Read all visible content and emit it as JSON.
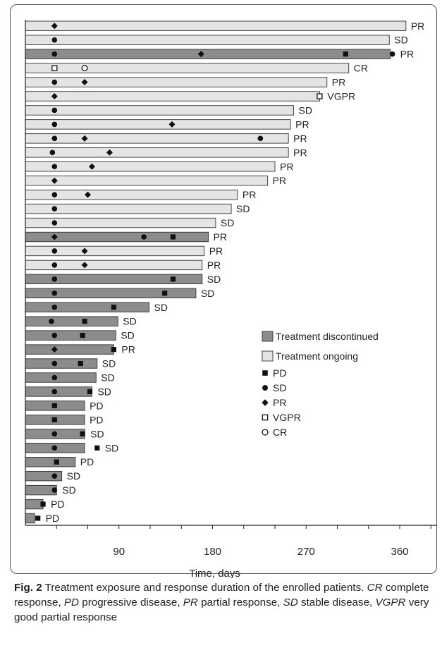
{
  "chart_data": {
    "type": "bar",
    "orientation": "horizontal",
    "title": "",
    "xlabel": "Time, days",
    "ylabel": "",
    "xlim": [
      0,
      390
    ],
    "x_ticks": [
      90,
      180,
      270,
      360
    ],
    "grid": false,
    "legend_position": "right",
    "colors": {
      "discontinued": "#8c8c8c",
      "ongoing": "#e4e4e4",
      "marker": "#111111"
    },
    "legend": {
      "discontinued": "Treatment discontinued",
      "ongoing": "Treatment ongoing",
      "PD": "PD",
      "SD": "SD",
      "PR": "PR",
      "VGPR": "VGPR",
      "CR": "CR"
    },
    "patients": [
      {
        "duration": 366,
        "status": "ongoing",
        "best_response": "PR",
        "events": [
          {
            "type": "PR",
            "day": 28
          }
        ]
      },
      {
        "duration": 350,
        "status": "ongoing",
        "best_response": "SD",
        "events": [
          {
            "type": "SD",
            "day": 28
          }
        ]
      },
      {
        "duration": 351,
        "status": "discontinued",
        "best_response": "PR",
        "events": [
          {
            "type": "SD",
            "day": 28
          },
          {
            "type": "PR",
            "day": 169
          },
          {
            "type": "PD",
            "day": 308
          },
          {
            "type": "SD",
            "day": 353
          }
        ]
      },
      {
        "duration": 311,
        "status": "ongoing",
        "best_response": "CR",
        "events": [
          {
            "type": "VGPR",
            "day": 28
          },
          {
            "type": "CR",
            "day": 57
          }
        ]
      },
      {
        "duration": 290,
        "status": "ongoing",
        "best_response": "PR",
        "events": [
          {
            "type": "SD",
            "day": 28
          },
          {
            "type": "PR",
            "day": 57
          }
        ]
      },
      {
        "duration": 283,
        "status": "ongoing",
        "best_response": "VGPR",
        "events": [
          {
            "type": "PR",
            "day": 28
          },
          {
            "type": "VGPR",
            "day": 283
          }
        ]
      },
      {
        "duration": 258,
        "status": "ongoing",
        "best_response": "SD",
        "events": [
          {
            "type": "SD",
            "day": 28
          }
        ]
      },
      {
        "duration": 255,
        "status": "ongoing",
        "best_response": "PR",
        "events": [
          {
            "type": "SD",
            "day": 28
          },
          {
            "type": "PR",
            "day": 141
          }
        ]
      },
      {
        "duration": 253,
        "status": "ongoing",
        "best_response": "PR",
        "events": [
          {
            "type": "SD",
            "day": 28
          },
          {
            "type": "PR",
            "day": 57
          },
          {
            "type": "SD",
            "day": 226
          }
        ]
      },
      {
        "duration": 253,
        "status": "ongoing",
        "best_response": "PR",
        "events": [
          {
            "type": "SD",
            "day": 26
          },
          {
            "type": "PR",
            "day": 81
          }
        ]
      },
      {
        "duration": 240,
        "status": "ongoing",
        "best_response": "PR",
        "events": [
          {
            "type": "SD",
            "day": 28
          },
          {
            "type": "PR",
            "day": 64
          }
        ]
      },
      {
        "duration": 233,
        "status": "ongoing",
        "best_response": "PR",
        "events": [
          {
            "type": "PR",
            "day": 28
          }
        ]
      },
      {
        "duration": 204,
        "status": "ongoing",
        "best_response": "PR",
        "events": [
          {
            "type": "SD",
            "day": 28
          },
          {
            "type": "PR",
            "day": 60
          }
        ]
      },
      {
        "duration": 198,
        "status": "ongoing",
        "best_response": "SD",
        "events": [
          {
            "type": "SD",
            "day": 28
          }
        ]
      },
      {
        "duration": 183,
        "status": "ongoing",
        "best_response": "SD",
        "events": [
          {
            "type": "SD",
            "day": 28
          }
        ]
      },
      {
        "duration": 176,
        "status": "discontinued",
        "best_response": "PR",
        "events": [
          {
            "type": "PR",
            "day": 28
          },
          {
            "type": "SD",
            "day": 114
          },
          {
            "type": "PD",
            "day": 142
          }
        ]
      },
      {
        "duration": 172,
        "status": "ongoing",
        "best_response": "PR",
        "events": [
          {
            "type": "SD",
            "day": 28
          },
          {
            "type": "PR",
            "day": 57
          }
        ]
      },
      {
        "duration": 170,
        "status": "ongoing",
        "best_response": "PR",
        "events": [
          {
            "type": "SD",
            "day": 28
          },
          {
            "type": "PR",
            "day": 57
          }
        ]
      },
      {
        "duration": 170,
        "status": "discontinued",
        "best_response": "SD",
        "events": [
          {
            "type": "SD",
            "day": 28
          },
          {
            "type": "PD",
            "day": 142
          }
        ]
      },
      {
        "duration": 164,
        "status": "discontinued",
        "best_response": "SD",
        "events": [
          {
            "type": "SD",
            "day": 28
          },
          {
            "type": "PD",
            "day": 134
          }
        ]
      },
      {
        "duration": 119,
        "status": "discontinued",
        "best_response": "SD",
        "events": [
          {
            "type": "SD",
            "day": 28
          },
          {
            "type": "PD",
            "day": 85
          }
        ]
      },
      {
        "duration": 89,
        "status": "discontinued",
        "best_response": "SD",
        "events": [
          {
            "type": "SD",
            "day": 25
          },
          {
            "type": "PD",
            "day": 57
          }
        ]
      },
      {
        "duration": 87,
        "status": "discontinued",
        "best_response": "SD",
        "events": [
          {
            "type": "SD",
            "day": 28
          },
          {
            "type": "PD",
            "day": 55
          }
        ]
      },
      {
        "duration": 85,
        "status": "discontinued",
        "best_response": "PR",
        "events": [
          {
            "type": "PR",
            "day": 28
          },
          {
            "type": "PD",
            "day": 85
          }
        ]
      },
      {
        "duration": 69,
        "status": "discontinued",
        "best_response": "SD",
        "events": [
          {
            "type": "SD",
            "day": 28
          },
          {
            "type": "PD",
            "day": 53
          }
        ]
      },
      {
        "duration": 68,
        "status": "discontinued",
        "best_response": "SD",
        "events": [
          {
            "type": "SD",
            "day": 28
          }
        ]
      },
      {
        "duration": 64,
        "status": "discontinued",
        "best_response": "SD",
        "events": [
          {
            "type": "SD",
            "day": 28
          },
          {
            "type": "PD",
            "day": 62
          }
        ]
      },
      {
        "duration": 57,
        "status": "discontinued",
        "best_response": "PD",
        "events": [
          {
            "type": "PD",
            "day": 28
          }
        ]
      },
      {
        "duration": 57,
        "status": "discontinued",
        "best_response": "PD",
        "events": [
          {
            "type": "PD",
            "day": 28
          }
        ]
      },
      {
        "duration": 57,
        "status": "discontinued",
        "best_response": "SD",
        "events": [
          {
            "type": "SD",
            "day": 28
          },
          {
            "type": "PD",
            "day": 55
          }
        ]
      },
      {
        "duration": 57,
        "status": "discontinued",
        "best_response": "SD",
        "events": [
          {
            "type": "SD",
            "day": 28
          },
          {
            "type": "PD",
            "day": 69
          }
        ]
      },
      {
        "duration": 48,
        "status": "discontinued",
        "best_response": "PD",
        "events": [
          {
            "type": "PD",
            "day": 30
          }
        ]
      },
      {
        "duration": 35,
        "status": "discontinued",
        "best_response": "SD",
        "events": [
          {
            "type": "SD",
            "day": 28
          }
        ]
      },
      {
        "duration": 30,
        "status": "discontinued",
        "best_response": "SD",
        "events": [
          {
            "type": "SD",
            "day": 28
          }
        ]
      },
      {
        "duration": 17,
        "status": "discontinued",
        "best_response": "PD",
        "events": [
          {
            "type": "PD",
            "day": 17
          }
        ]
      },
      {
        "duration": 9,
        "status": "discontinued",
        "best_response": "PD",
        "events": [
          {
            "type": "PD",
            "day": 12
          }
        ]
      }
    ]
  },
  "caption": {
    "label": "Fig. 2",
    "text_1": " Treatment exposure and response duration of the enrolled patients. ",
    "cr_abbr": "CR",
    "cr_def": " complete response, ",
    "pd_abbr": "PD",
    "pd_def": " progressive disease, ",
    "pr_abbr": "PR",
    "pr_def": " partial response, ",
    "sd_abbr": "SD",
    "sd_def": " stable disease, ",
    "vgpr_abbr": "VGPR",
    "vgpr_def": " very good partial response"
  }
}
